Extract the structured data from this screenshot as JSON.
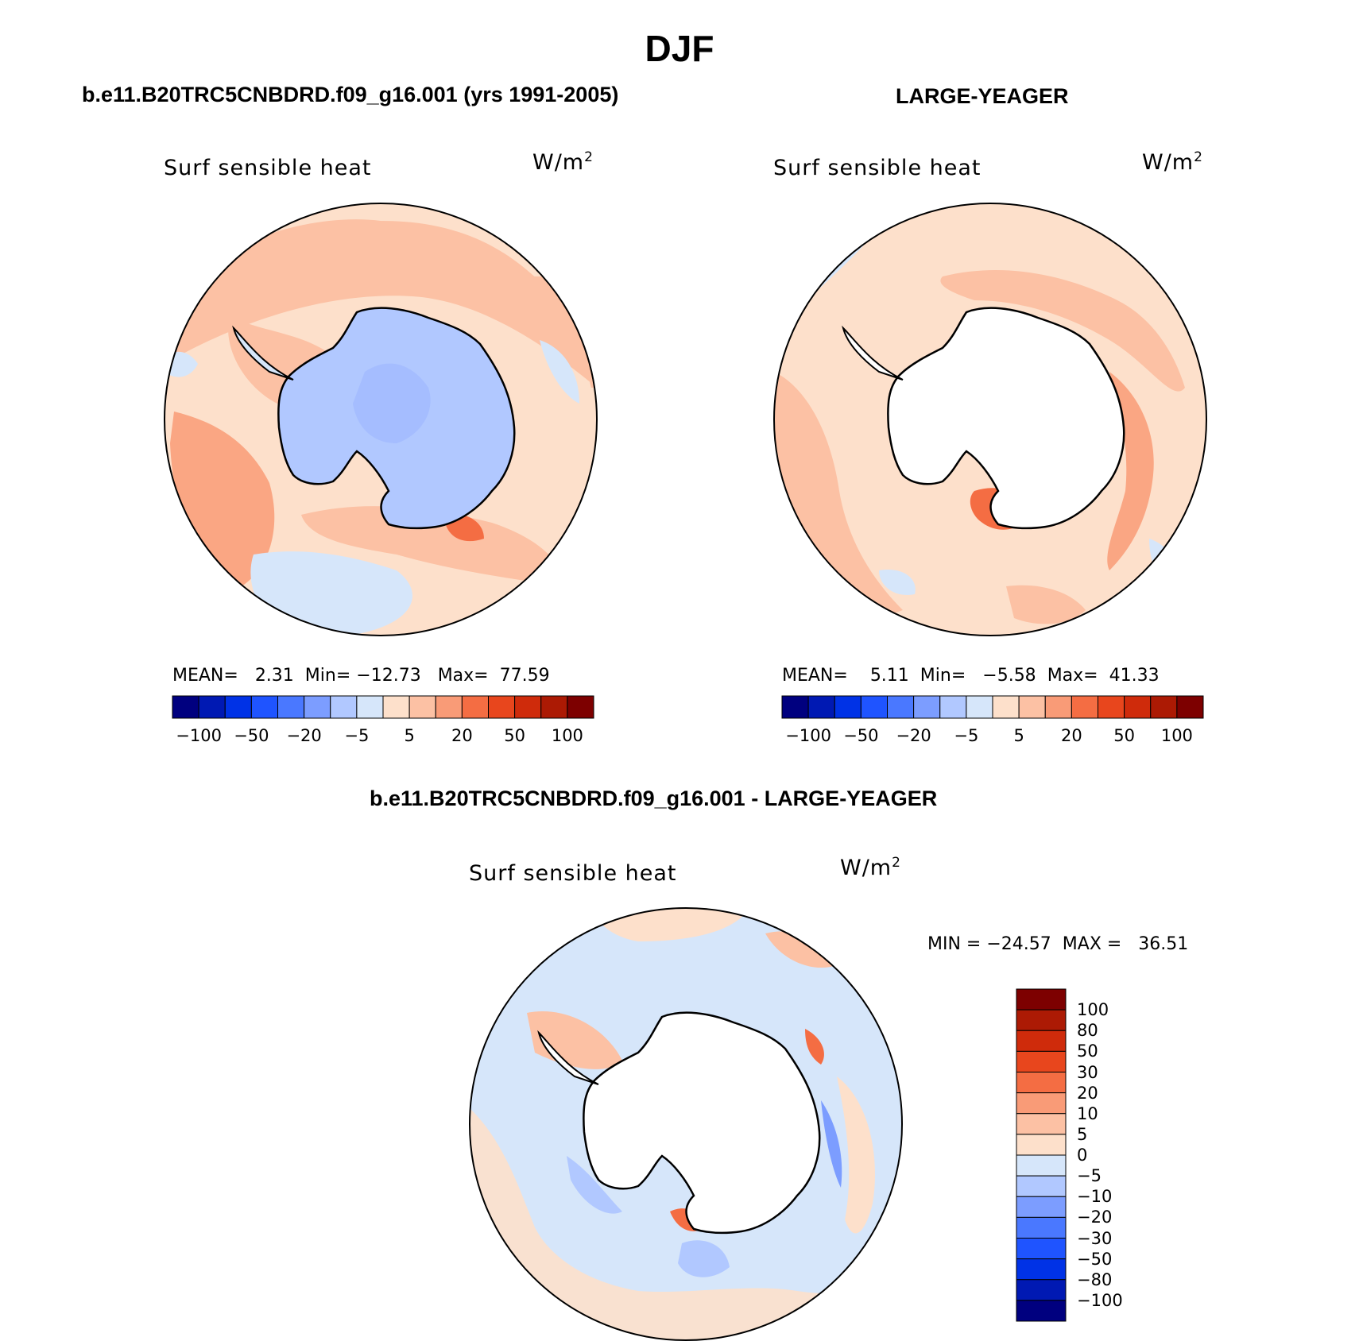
{
  "season_title": "DJF",
  "panels": [
    {
      "id": "model",
      "header": "b.e11.B20TRC5CNBDRD.f09_g16.001 (yrs 1991-2005)",
      "variable": "Surf sensible heat",
      "units": "W/m",
      "units_exp": "2",
      "stats": {
        "mean_label": "MEAN=",
        "mean": "2.31",
        "min_label": "Min=",
        "min": "−12.73",
        "max_label": "Max=",
        "max": "77.59"
      },
      "colorbar_ticks": [
        "−100",
        "−50",
        "−20",
        "−5",
        "5",
        "20",
        "50",
        "100"
      ]
    },
    {
      "id": "obs",
      "header": "LARGE-YEAGER",
      "variable": "Surf sensible heat",
      "units": "W/m",
      "units_exp": "2",
      "stats": {
        "mean_label": "MEAN=",
        "mean": "5.11",
        "min_label": "Min=",
        "min": "−5.58",
        "max_label": "Max=",
        "max": "41.33"
      },
      "colorbar_ticks": [
        "−100",
        "−50",
        "−20",
        "−5",
        "5",
        "20",
        "50",
        "100"
      ]
    },
    {
      "id": "diff",
      "header": "b.e11.B20TRC5CNBDRD.f09_g16.001 - LARGE-YEAGER",
      "variable": "Surf sensible heat",
      "units": "W/m",
      "units_exp": "2",
      "stats": {
        "min_label": "MIN =",
        "min": "−24.57",
        "max_label": "MAX =",
        "max": "36.51"
      },
      "colorbar_ticks": [
        "100",
        "80",
        "50",
        "30",
        "20",
        "10",
        "5",
        "0",
        "−5",
        "−10",
        "−20",
        "−30",
        "−50",
        "−80",
        "−100"
      ]
    }
  ],
  "colors": {
    "scale_blue_to_red": [
      "#00007f",
      "#0019b3",
      "#0032e6",
      "#1f54ff",
      "#4a78ff",
      "#7c9dff",
      "#b1c8ff",
      "#d6e6fa",
      "#fde0cb",
      "#fcc1a4",
      "#f99b77",
      "#f46d43",
      "#e8461d",
      "#cf2b0b",
      "#ac1a04",
      "#7d0000"
    ],
    "land": "#ffffff",
    "coast": "#000000"
  },
  "legend": {
    "cb_horizontal": "bottom",
    "cb_vertical": "right"
  }
}
